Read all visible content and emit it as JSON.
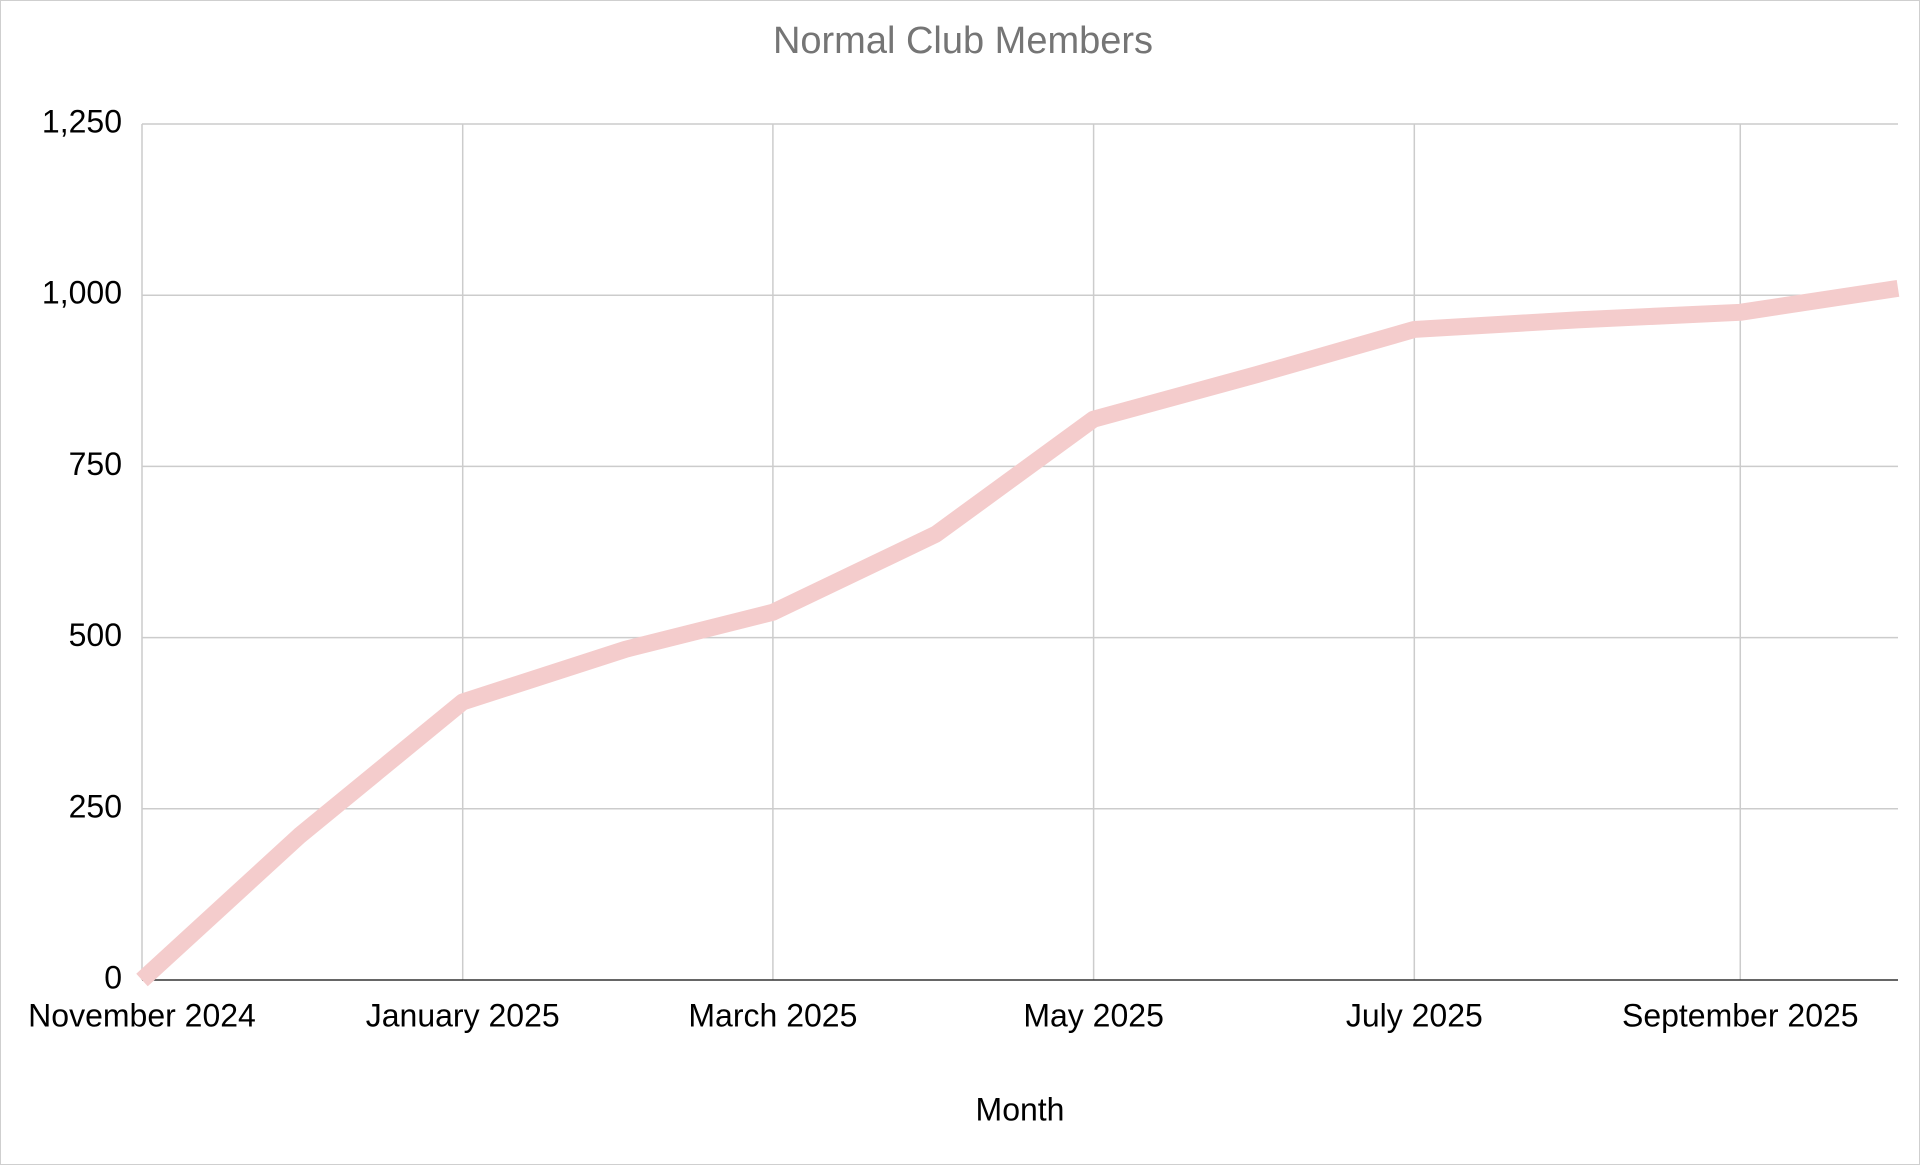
{
  "chart_data": {
    "type": "line",
    "title": "Normal Club Members",
    "x_label": "Month",
    "x": [
      "2024-11",
      "2024-12",
      "2025-01",
      "2025-02",
      "2025-03",
      "2025-04",
      "2025-05",
      "2025-06",
      "2025-07",
      "2025-08",
      "2025-09",
      "2025-10"
    ],
    "series": [
      {
        "name": "Normal Club Members",
        "color": "#f4cccc",
        "values": [
          0,
          211,
          406,
          483,
          537,
          651,
          819,
          884,
          950,
          964,
          975,
          1010
        ]
      }
    ],
    "xlim": [
      "2024-11",
      "2025-10"
    ],
    "xticks": [
      {
        "value": "2024-11",
        "label": "November 2024"
      },
      {
        "value": "2025-01",
        "label": "January 2025"
      },
      {
        "value": "2025-03",
        "label": "March 2025"
      },
      {
        "value": "2025-05",
        "label": "May 2025"
      },
      {
        "value": "2025-07",
        "label": "July 2025"
      },
      {
        "value": "2025-09",
        "label": "September 2025"
      }
    ],
    "ylim": [
      0,
      1250
    ],
    "yticks": [
      0,
      {
        "value": 250,
        "label": "250"
      },
      500,
      750,
      {
        "value": 1000,
        "label": "1,000"
      },
      {
        "value": 1250,
        "label": "1,250"
      }
    ],
    "grid": true
  }
}
